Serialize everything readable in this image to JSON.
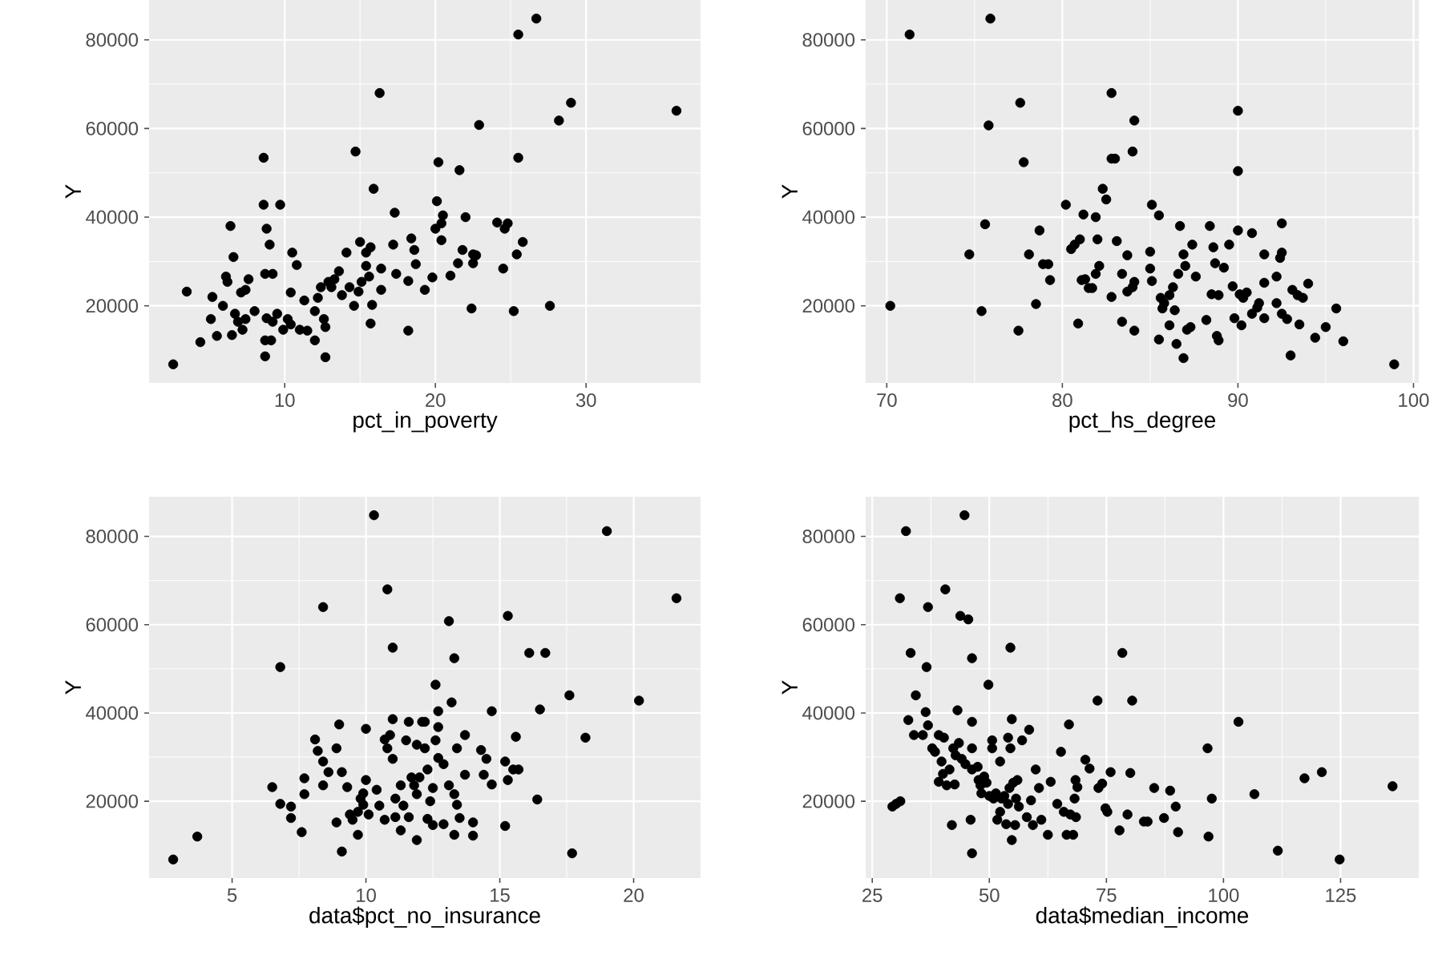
{
  "chart_data": [
    {
      "type": "scatter",
      "xlabel": "pct_in_poverty",
      "ylabel": "Y",
      "xlim": [
        1.0,
        37.6
      ],
      "ylim": [
        2600,
        89000
      ],
      "xticks": [
        10,
        20,
        30
      ],
      "yticks": [
        20000,
        40000,
        60000,
        80000
      ],
      "grid": true,
      "marker": "circle",
      "x": [
        2.6,
        3.5,
        4.4,
        5.2,
        5.1,
        5.5,
        5.9,
        6.1,
        6.2,
        6.4,
        6.6,
        6.5,
        6.7,
        6.9,
        7.1,
        7.2,
        7.4,
        7.6,
        7.4,
        8.0,
        8.6,
        8.6,
        8.7,
        8.8,
        9.0,
        9.2,
        8.7,
        8.7,
        9.1,
        8.8,
        9.2,
        9.7,
        9.5,
        9.9,
        10.2,
        10.4,
        10.5,
        10.8,
        10.4,
        11.0,
        11.3,
        11.5,
        12.0,
        12.0,
        12.2,
        12.4,
        12.6,
        12.7,
        12.7,
        12.9,
        13.1,
        13.3,
        13.6,
        13.8,
        14.1,
        14.3,
        14.7,
        14.6,
        14.9,
        15.0,
        15.1,
        15.4,
        15.4,
        15.6,
        15.7,
        15.7,
        15.8,
        15.9,
        16.3,
        16.4,
        16.4,
        17.2,
        17.3,
        17.4,
        18.2,
        18.2,
        18.4,
        18.6,
        18.7,
        19.3,
        19.8,
        20.0,
        20.1,
        20.2,
        20.4,
        20.4,
        20.5,
        21.0,
        21.5,
        21.6,
        21.8,
        22.0,
        22.4,
        22.5,
        22.5,
        22.7,
        22.9,
        24.1,
        24.5,
        24.6,
        24.8,
        25.2,
        25.4,
        25.5,
        25.5,
        25.8,
        26.7,
        27.6,
        28.2,
        29.0,
        36.0
      ],
      "series": [
        {
          "color": "#000000",
          "values": [
            6800,
            23200,
            11800,
            22000,
            17000,
            13200,
            20000,
            26600,
            25400,
            38000,
            31000,
            13400,
            18200,
            16400,
            23000,
            14600,
            23600,
            26000,
            17000,
            18800,
            53400,
            42800,
            27200,
            37400,
            33800,
            27200,
            12200,
            8600,
            12200,
            17200,
            16400,
            42800,
            18200,
            14600,
            17000,
            23000,
            32000,
            29200,
            15800,
            14600,
            21200,
            14400,
            18800,
            12200,
            21800,
            24200,
            17000,
            15200,
            8400,
            25400,
            24200,
            26000,
            27800,
            22400,
            32000,
            24200,
            54800,
            20000,
            23200,
            34400,
            25400,
            32000,
            29000,
            26600,
            33200,
            16000,
            20200,
            46400,
            68000,
            28400,
            23600,
            33800,
            41000,
            27200,
            25600,
            14400,
            35200,
            32600,
            29400,
            23600,
            26400,
            37400,
            43600,
            52400,
            38600,
            34800,
            40400,
            26800,
            29600,
            50600,
            32600,
            40000,
            19400,
            31600,
            29600,
            31400,
            60800,
            38800,
            28400,
            37400,
            38600,
            18800,
            31600,
            81200,
            53400,
            34400,
            84800,
            20000,
            61800,
            65800,
            64000
          ]
        }
      ]
    },
    {
      "type": "scatter",
      "xlabel": "pct_hs_degree",
      "ylabel": "Y",
      "xlim": [
        68.8,
        100.3
      ],
      "ylim": [
        2600,
        89000
      ],
      "xticks": [
        70,
        80,
        90,
        100
      ],
      "yticks": [
        20000,
        40000,
        60000,
        80000
      ],
      "grid": true,
      "marker": "circle",
      "x": [
        70.2,
        71.3,
        74.7,
        75.4,
        75.6,
        75.8,
        75.9,
        77.5,
        77.6,
        77.8,
        78.1,
        78.5,
        78.7,
        78.9,
        79.2,
        79.3,
        80.2,
        80.5,
        80.7,
        80.9,
        81.0,
        81.1,
        81.2,
        81.3,
        81.5,
        81.7,
        81.9,
        81.9,
        82.0,
        82.1,
        82.3,
        82.5,
        82.8,
        82.8,
        83.0,
        82.8,
        83.1,
        83.4,
        83.4,
        83.7,
        83.7,
        84.0,
        84.0,
        84.1,
        84.1,
        84.1,
        85.1,
        85.0,
        85.0,
        85.1,
        85.5,
        85.5,
        85.6,
        85.7,
        85.8,
        86.1,
        86.1,
        86.3,
        86.4,
        86.5,
        86.6,
        86.7,
        86.9,
        86.9,
        87.0,
        87.1,
        87.3,
        87.4,
        87.6,
        88.2,
        88.4,
        88.5,
        88.6,
        88.7,
        88.8,
        88.9,
        88.9,
        89.2,
        89.5,
        89.7,
        89.8,
        90.0,
        90.0,
        90.0,
        90.1,
        90.2,
        90.3,
        90.5,
        90.8,
        90.8,
        91.1,
        91.2,
        91.5,
        91.5,
        91.5,
        92.2,
        92.2,
        92.4,
        92.5,
        92.5,
        92.5,
        92.8,
        93.0,
        93.1,
        93.4,
        93.5,
        93.7,
        94.0,
        94.4,
        95.0,
        95.6,
        96.0,
        98.9
      ],
      "series": [
        {
          "color": "#000000",
          "values": [
            20000,
            81200,
            31600,
            18800,
            38400,
            60700,
            84800,
            14400,
            65800,
            52400,
            31600,
            20400,
            37000,
            29400,
            29400,
            25800,
            42800,
            32800,
            33800,
            16000,
            35000,
            25800,
            40600,
            26000,
            24000,
            24000,
            27200,
            40000,
            35000,
            29000,
            46400,
            44000,
            68000,
            53200,
            53200,
            22000,
            34600,
            16400,
            27200,
            31400,
            23200,
            24200,
            54800,
            61800,
            25400,
            14400,
            42800,
            32200,
            28400,
            25600,
            40400,
            12400,
            21800,
            19400,
            20600,
            22400,
            15600,
            24200,
            19000,
            11400,
            27200,
            38000,
            8200,
            31600,
            29000,
            14600,
            15200,
            33800,
            26600,
            16800,
            38000,
            22600,
            33200,
            29600,
            13200,
            12200,
            22400,
            28600,
            33800,
            24400,
            17200,
            37000,
            64000,
            50400,
            22600,
            15600,
            21800,
            23000,
            36400,
            18200,
            19600,
            20600,
            17200,
            25200,
            31600,
            26600,
            20600,
            30800,
            32000,
            38600,
            18200,
            17000,
            8800,
            23600,
            22400,
            15800,
            21800,
            25000,
            12800,
            15200,
            19400,
            12000,
            6800
          ]
        }
      ]
    },
    {
      "type": "scatter",
      "xlabel": "data$pct_no_insurance",
      "ylabel": "Y",
      "xlim": [
        1.9,
        22.5
      ],
      "ylim": [
        2600,
        89000
      ],
      "xticks": [
        5,
        10,
        15,
        20
      ],
      "yticks": [
        20000,
        40000,
        60000,
        80000
      ],
      "grid": true,
      "marker": "circle",
      "x": [
        2.8,
        3.7,
        6.5,
        6.8,
        6.8,
        7.2,
        7.2,
        7.6,
        7.7,
        7.7,
        8.1,
        8.2,
        8.4,
        8.4,
        8.4,
        8.6,
        8.9,
        8.9,
        9.0,
        9.1,
        9.1,
        9.3,
        9.4,
        9.5,
        9.7,
        9.7,
        9.8,
        9.9,
        9.9,
        10.0,
        10.0,
        10.1,
        10.3,
        10.4,
        10.5,
        10.7,
        10.7,
        10.8,
        10.8,
        10.9,
        11.0,
        11.0,
        11.0,
        11.1,
        11.1,
        11.3,
        11.3,
        11.4,
        11.5,
        11.6,
        11.6,
        11.7,
        11.8,
        11.9,
        11.9,
        11.9,
        12.0,
        12.1,
        12.2,
        12.2,
        12.3,
        12.3,
        12.4,
        12.5,
        12.5,
        12.6,
        12.6,
        12.7,
        12.7,
        12.7,
        12.9,
        12.9,
        13.1,
        13.1,
        13.2,
        13.3,
        13.3,
        13.3,
        13.4,
        13.4,
        13.5,
        13.7,
        13.7,
        14.0,
        14.0,
        14.3,
        14.4,
        14.5,
        14.7,
        14.7,
        15.2,
        15.2,
        15.3,
        15.3,
        15.5,
        15.6,
        15.7,
        16.1,
        16.4,
        16.5,
        16.7,
        17.6,
        17.7,
        18.2,
        19.0,
        20.2,
        21.6
      ],
      "series": [
        {
          "color": "#000000",
          "values": [
            6800,
            12000,
            23200,
            50400,
            19400,
            18800,
            16200,
            13000,
            25200,
            21600,
            34000,
            31400,
            29000,
            64000,
            23600,
            26600,
            15200,
            32000,
            37400,
            8600,
            26600,
            23200,
            17000,
            15800,
            12400,
            17600,
            20600,
            21800,
            19200,
            24800,
            36400,
            17000,
            84800,
            22600,
            19000,
            34000,
            15800,
            68000,
            32000,
            35000,
            29600,
            38600,
            54800,
            16400,
            20600,
            13400,
            23600,
            19000,
            33800,
            16400,
            38000,
            25400,
            23600,
            11200,
            32800,
            21600,
            25400,
            38000,
            32000,
            38000,
            27200,
            16000,
            20000,
            14600,
            23000,
            46400,
            33800,
            29800,
            40400,
            36800,
            14800,
            28400,
            60800,
            23600,
            42400,
            12400,
            21600,
            52400,
            32000,
            19200,
            16200,
            26000,
            35000,
            15200,
            12200,
            31600,
            26000,
            29600,
            40400,
            23800,
            14400,
            29000,
            24800,
            62000,
            27200,
            34600,
            27200,
            53600,
            20400,
            40800,
            53600,
            44000,
            8200,
            34400,
            81200,
            42800,
            66000
          ]
        }
      ]
    },
    {
      "type": "scatter",
      "xlabel": "data$median_income",
      "ylabel": "Y",
      "xlim": [
        23.6,
        141.7
      ],
      "ylim": [
        2600,
        89000
      ],
      "xticks": [
        25,
        50,
        75,
        100,
        125
      ],
      "yticks": [
        20000,
        40000,
        60000,
        80000
      ],
      "grid": true,
      "marker": "circle",
      "x": [
        29.3,
        30.1,
        31.0,
        30.9,
        32.2,
        32.7,
        33.2,
        33.9,
        34.3,
        35.8,
        36.4,
        36.6,
        36.9,
        36.9,
        37.8,
        38.4,
        39.2,
        39.2,
        39.8,
        40.1,
        40.3,
        40.6,
        40.9,
        41.5,
        42.0,
        42.3,
        42.6,
        42.8,
        43.2,
        43.5,
        43.8,
        44.1,
        44.7,
        44.9,
        45.5,
        46.0,
        46.3,
        46.3,
        46.3,
        46.3,
        46.3,
        47.5,
        47.7,
        48.1,
        48.3,
        48.9,
        49.4,
        49.8,
        50.0,
        50.6,
        50.6,
        50.9,
        51.4,
        51.7,
        52.3,
        52.3,
        52.6,
        53.2,
        53.6,
        54.0,
        54.0,
        54.3,
        54.5,
        54.5,
        54.8,
        54.8,
        55.1,
        55.5,
        55.7,
        56.0,
        56.3,
        57.0,
        58.0,
        58.5,
        58.9,
        59.3,
        59.9,
        60.6,
        61.1,
        62.5,
        63.1,
        64.5,
        65.3,
        65.9,
        66.5,
        67.0,
        67.3,
        67.9,
        68.2,
        68.4,
        68.5,
        68.8,
        70.5,
        71.4,
        73.1,
        73.3,
        74.1,
        74.8,
        75.2,
        75.9,
        77.8,
        78.4,
        79.5,
        80.1,
        80.5,
        83.0,
        83.8,
        85.2,
        87.3,
        88.6,
        89.8,
        90.3,
        96.6,
        96.8,
        97.5,
        103.2,
        106.6,
        111.6,
        117.3,
        121.0,
        124.8,
        136.1
      ],
      "series": [
        {
          "color": "#000000",
          "values": [
            18800,
            19400,
            20000,
            66000,
            81200,
            38400,
            53600,
            35000,
            44000,
            35000,
            40200,
            50400,
            64000,
            37200,
            32000,
            31200,
            24400,
            35000,
            29000,
            26200,
            34400,
            68000,
            23600,
            27200,
            14600,
            32000,
            23800,
            30400,
            40600,
            33200,
            62000,
            29600,
            84800,
            28400,
            61200,
            15800,
            52400,
            38000,
            32000,
            27200,
            8200,
            27800,
            24800,
            23600,
            21800,
            25600,
            24200,
            46400,
            21200,
            33800,
            32000,
            20600,
            21800,
            15800,
            29000,
            17600,
            20600,
            21200,
            14800,
            34400,
            19400,
            23000,
            54800,
            32000,
            38600,
            11200,
            24200,
            14600,
            20600,
            24800,
            18800,
            33800,
            16400,
            36200,
            20200,
            14600,
            27200,
            23000,
            15800,
            12400,
            24400,
            19400,
            31200,
            17600,
            12400,
            37400,
            17000,
            12400,
            20600,
            24800,
            16400,
            23200,
            29400,
            27400,
            42800,
            23000,
            24000,
            18400,
            17600,
            26600,
            13400,
            53600,
            17000,
            26400,
            42800,
            15400,
            15400,
            23000,
            16200,
            22400,
            18800,
            13000,
            32000,
            12000,
            20600,
            38000,
            21600,
            8800,
            25200,
            26600,
            6800,
            23400
          ]
        }
      ]
    }
  ]
}
